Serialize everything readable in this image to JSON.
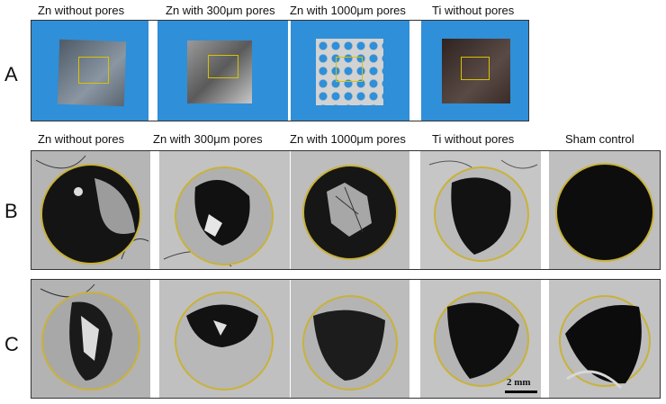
{
  "top_labels": [
    "Zn without pores",
    "Zn with 300μm pores",
    "Zn with 1000μm pores",
    "Ti without pores"
  ],
  "mid_labels": [
    "Zn without pores",
    "Zn with 300μm pores",
    "Zn with 1000μm pores",
    "Ti without pores",
    "Sham control"
  ],
  "row_labels": {
    "a": "A",
    "b": "B",
    "c": "C"
  },
  "scale_bar": "2 mm",
  "colors": {
    "blue_cloth": "#2f8fd8",
    "ring": "#c8b23a",
    "highlight": "#e0c800"
  }
}
